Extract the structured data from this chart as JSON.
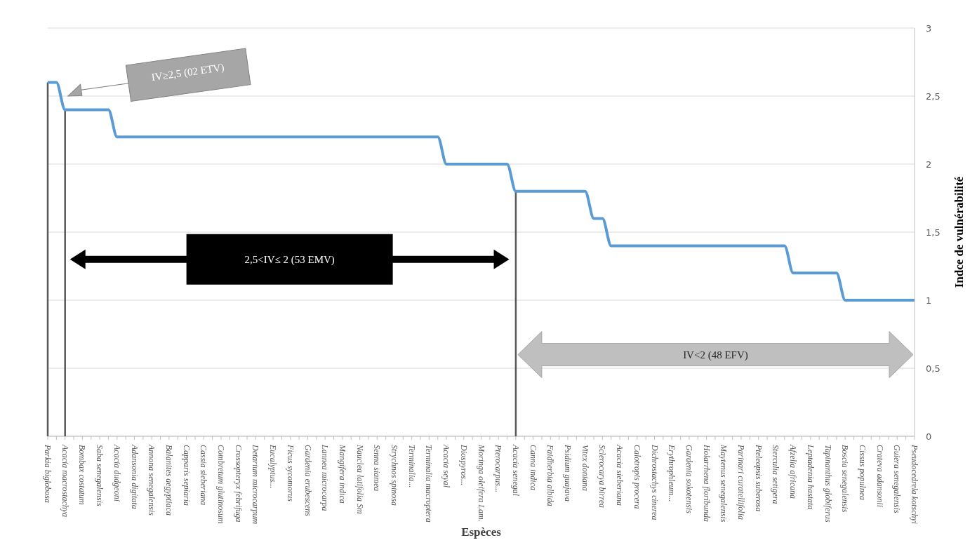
{
  "chart_data": {
    "type": "line",
    "xlabel": "Espèces",
    "ylabel": "Indce de vulnérabilité",
    "categories": [
      "Parkia biglobosa",
      null,
      "Acacia macrostachya",
      null,
      "Bombax costatum",
      null,
      "Saba senegalensis",
      null,
      "Acacia dudgeoni",
      null,
      "Adansonia digitata",
      null,
      "Annona senegalensis",
      null,
      "Balanites aegyptiaca",
      null,
      "Capparis sepiaria",
      null,
      "Cassia sieberiana",
      null,
      "Combretum glutinosum",
      null,
      "Crossopteryx febrifuga",
      null,
      "Detarium microcarpum",
      null,
      "Eucalyptus...",
      null,
      "Ficus sycomorus",
      null,
      "Gardenia erubescens",
      null,
      "Lannea microcarpa",
      null,
      "Mangifera indica",
      null,
      "Nauclea latifolia Sm",
      null,
      "Senna siamea",
      null,
      "Strychnos spinosa",
      null,
      "Terminalia...",
      null,
      "Terminalia macroptera",
      null,
      "Acacia seyal",
      null,
      "Diospyros...",
      null,
      "Moringa oleifera Lam.",
      null,
      "Pterocarpus...",
      null,
      "Acacia senegal",
      null,
      "Canna indica",
      null,
      "Faidherbia albida",
      null,
      "Psidium guajava",
      null,
      "Vitex doniana",
      null,
      "Sclerocarya birrea",
      null,
      "Acacia sieberiana",
      null,
      "Calotropis procera",
      null,
      "Dichrostachys cinerea",
      null,
      "Erythrophleum...",
      null,
      "Gardenia sokotensis",
      null,
      "Holarrhena floribunda",
      null,
      "Maytenus senegalensis",
      null,
      "Parinari curatellifolia",
      null,
      "Pteleopsis suberosa",
      null,
      "Sterculia setigera",
      null,
      "Afzelia africana",
      null,
      "Leptadenia hastata",
      null,
      "Tapinanthus globiferus",
      null,
      "Boscia senegalensis",
      null,
      "Cissus populnea",
      null,
      "Crateva adansonii",
      null,
      "Guiera senegalensis",
      null,
      "Pseudocedrela kotschyi"
    ],
    "series": [
      {
        "color": "#5b9bd5",
        "values": [
          2.6,
          2.6,
          2.4,
          2.4,
          2.4,
          2.4,
          2.4,
          2.4,
          2.2,
          2.2,
          2.2,
          2.2,
          2.2,
          2.2,
          2.2,
          2.2,
          2.2,
          2.2,
          2.2,
          2.2,
          2.2,
          2.2,
          2.2,
          2.2,
          2.2,
          2.2,
          2.2,
          2.2,
          2.2,
          2.2,
          2.2,
          2.2,
          2.2,
          2.2,
          2.2,
          2.2,
          2.2,
          2.2,
          2.2,
          2.2,
          2.2,
          2.2,
          2.2,
          2.2,
          2.2,
          2.2,
          2.0,
          2.0,
          2.0,
          2.0,
          2.0,
          2.0,
          2.0,
          2.0,
          1.8,
          1.8,
          1.8,
          1.8,
          1.8,
          1.8,
          1.8,
          1.8,
          1.8,
          1.6,
          1.6,
          1.4,
          1.4,
          1.4,
          1.4,
          1.4,
          1.4,
          1.4,
          1.4,
          1.4,
          1.4,
          1.4,
          1.4,
          1.4,
          1.4,
          1.4,
          1.4,
          1.4,
          1.4,
          1.4,
          1.4,
          1.4,
          1.2,
          1.2,
          1.2,
          1.2,
          1.2,
          1.2,
          1.0,
          1.0,
          1.0,
          1.0,
          1.0,
          1.0,
          1.0,
          1.0,
          1.0
        ]
      }
    ],
    "ylim": [
      0,
      3
    ],
    "yticks": [
      0,
      {
        "value": 0.5,
        "label": "0,5"
      },
      1,
      {
        "value": 1.5,
        "label": "1,5"
      },
      2,
      {
        "value": 2.5,
        "label": "2,5"
      },
      3
    ],
    "grid": "y",
    "marker": "none",
    "line_style": "solid",
    "ref_lines": [
      {
        "axis": "x",
        "value": "Parkia biglobosa",
        "color": "#595959"
      },
      {
        "axis": "x",
        "value": "Acacia macrostachya",
        "color": "#595959"
      },
      {
        "axis": "x",
        "value": "Acacia senegal",
        "color": "#595959"
      }
    ],
    "annotations": [
      "IV≥2,5  (02 ETV)",
      "2,5<IV≤ 2 (53 EMV)",
      "IV<2 (48 EFV)"
    ]
  }
}
